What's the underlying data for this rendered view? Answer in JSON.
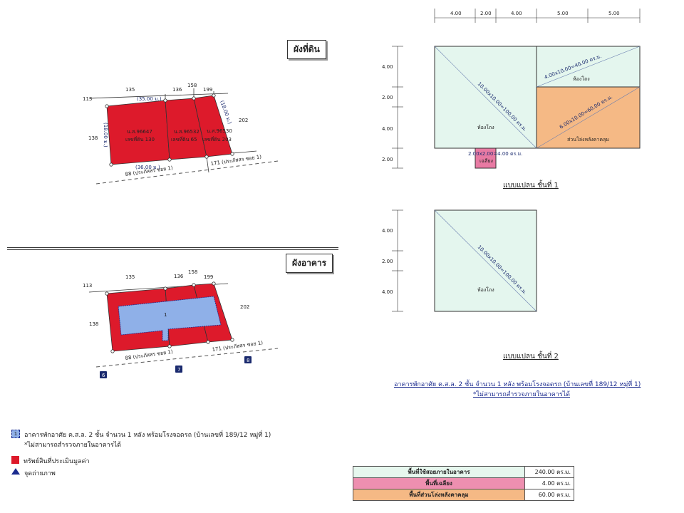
{
  "land_plan": {
    "title": "ผังที่ดิน",
    "neighbors": {
      "n113": "113",
      "n135": "135",
      "n136": "136",
      "n158": "158",
      "n199": "199",
      "n202": "202",
      "n138": "138",
      "n171": "171 (ประภัสสร ซอย 1)",
      "n88": "88 (ประภัสสร ซอย 1)"
    },
    "dims": {
      "top": "(35.00 ม.)",
      "bottom": "(36.00 ม.)",
      "left": "(18.00 ม.)",
      "right": "(18.00 ม.)"
    },
    "parcels": [
      {
        "deed": "น.ส.96647",
        "lot": "เลขที่ดิน 130"
      },
      {
        "deed": "น.ส.96532",
        "lot": "เลขที่ดิน 65"
      },
      {
        "deed": "น.ส.96530",
        "lot": "เลขที่ดิน 203"
      }
    ]
  },
  "building_plan": {
    "title": "ผังอาคาร",
    "building_no": "1",
    "photo_points": [
      "6",
      "7",
      "8"
    ]
  },
  "floor1": {
    "top_dims": [
      "4.00",
      "2.00",
      "4.00",
      "5.00",
      "5.00"
    ],
    "side_dims": [
      "4.00",
      "2.00",
      "4.00",
      "2.00"
    ],
    "rooms": {
      "main_area": "10.00x10.00=100.00 ตร.ม.",
      "main_name": "ห้องโถง",
      "right_top_area": "4.00x10.00=40.00 ตร.ม.",
      "right_top_name": "ห้องโถง",
      "right_bottom_area": "6.00x10.00=60.00 ตร.ม.",
      "right_bottom_name": "ส่วนโล่งหลังคาคลุม",
      "porch_area": "2.00x2.00=4.00 ตร.ม.",
      "porch_name": "เฉลียง"
    },
    "title": "แบบแปลน  ชั้นที่ 1"
  },
  "floor2": {
    "side_dims": [
      "4.00",
      "2.00",
      "4.00"
    ],
    "room_area": "10.00x10.00=100.00 ตร.ม.",
    "room_name": "ห้องโถง",
    "title": "แบบแปลน  ชั้นที่ 2"
  },
  "building_desc": {
    "line1": "อาคารพักอาศัย ค.ส.ล. 2 ชั้น จำนวน 1 หลัง พร้อมโรงจอดรถ  (บ้านเลขที่ 189/12 หมู่ที่ 1)",
    "line2": "*ไม่สามารถสำรวจภายในอาคารได้"
  },
  "legend": {
    "item1_no": "1",
    "item1_line1": "อาคารพักอาศัย ค.ส.ล. 2 ชั้น จำนวน 1 หลัง พร้อมโรงจอดรถ  (บ้านเลขที่ 189/12 หมู่ที่ 1)",
    "item1_line2": "*ไม่สามารถสำรวจภายในอาคารได้",
    "item2": "ทรัพย์สินที่ประเมินมูลค่า",
    "item3": "จุดถ่ายภาพ"
  },
  "area_table": [
    {
      "label": "พื้นที่ใช้สอยภายในอาคาร",
      "value": "240.00 ตร.ม.",
      "color": "#e6f7ee"
    },
    {
      "label": "พื้นที่เฉลียง",
      "value": "4.00 ตร.ม.",
      "color": "#ee8fb0"
    },
    {
      "label": "พื้นที่ส่วนโล่งหลังคาคลุม",
      "value": "60.00 ตร.ม.",
      "color": "#f5b985"
    }
  ],
  "colors": {
    "parcel_red": "#dd1a2b",
    "building_blue": "#8fb0e8",
    "hall_green": "#e4f6ee",
    "open_orange": "#f5b985",
    "porch_pink": "#e87aa3"
  }
}
